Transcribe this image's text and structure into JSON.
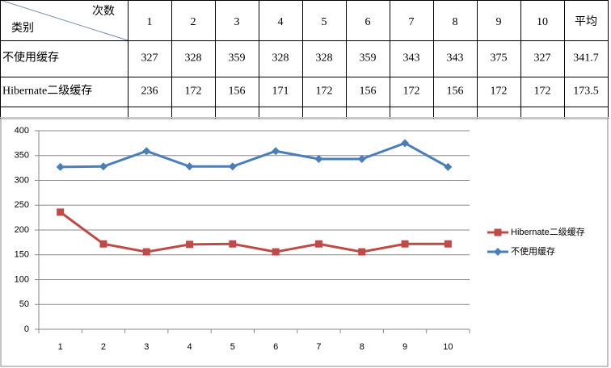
{
  "table": {
    "corner_top": "次数",
    "corner_bottom": "类别",
    "columns": [
      "1",
      "2",
      "3",
      "4",
      "5",
      "6",
      "7",
      "8",
      "9",
      "10",
      "平均"
    ],
    "rows": [
      [
        "不使用缓存",
        327,
        328,
        359,
        328,
        328,
        359,
        343,
        343,
        375,
        327,
        341.7
      ],
      [
        "Hibernate二级缓存",
        236,
        172,
        156,
        171,
        172,
        156,
        172,
        156,
        172,
        172,
        173.5
      ]
    ]
  },
  "chart_data": {
    "type": "line",
    "categories": [
      "1",
      "2",
      "3",
      "4",
      "5",
      "6",
      "7",
      "8",
      "9",
      "10"
    ],
    "series": [
      {
        "name": "Hibernate二级缓存",
        "color": "#be4b48",
        "marker": "square",
        "values": [
          236,
          172,
          156,
          171,
          172,
          156,
          172,
          156,
          172,
          172
        ]
      },
      {
        "name": "不使用缓存",
        "color": "#4a7ebb",
        "marker": "diamond",
        "values": [
          327,
          328,
          359,
          328,
          328,
          359,
          343,
          343,
          375,
          327
        ]
      }
    ],
    "ylim": [
      0,
      400
    ],
    "yticks": [
      0,
      50,
      100,
      150,
      200,
      250,
      300,
      350,
      400
    ],
    "grid": true,
    "legend": "right"
  }
}
